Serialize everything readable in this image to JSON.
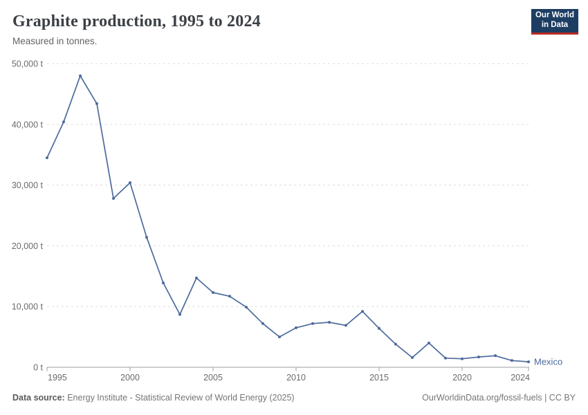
{
  "header": {
    "title": "Graphite production, 1995 to 2024",
    "subtitle": "Measured in tonnes."
  },
  "logo": {
    "line1": "Our World",
    "line2": "in Data",
    "bg_color": "#1d3d63",
    "bar_color": "#bc2a23"
  },
  "chart_data": {
    "type": "line",
    "title": "Graphite production, 1995 to 2024",
    "subtitle": "Measured in tonnes.",
    "unit": "tonnes",
    "grid": "horizontal-dashed",
    "legend_position": "end-of-line",
    "xlim": [
      1995,
      2024
    ],
    "ylim": [
      0,
      50000
    ],
    "x_ticks": [
      1995,
      2000,
      2005,
      2010,
      2015,
      2020,
      2024
    ],
    "x_tick_labels": [
      "1995",
      "2000",
      "2005",
      "2010",
      "2015",
      "2020",
      "2024"
    ],
    "y_ticks": [
      0,
      10000,
      20000,
      30000,
      40000,
      50000
    ],
    "y_tick_labels": [
      "0 t",
      "10,000 t",
      "20,000 t",
      "30,000 t",
      "40,000 t",
      "50,000 t"
    ],
    "x": [
      1995,
      1996,
      1997,
      1998,
      1999,
      2000,
      2001,
      2002,
      2003,
      2004,
      2005,
      2006,
      2007,
      2008,
      2009,
      2010,
      2011,
      2012,
      2013,
      2014,
      2015,
      2016,
      2017,
      2018,
      2019,
      2020,
      2021,
      2022,
      2023,
      2024
    ],
    "series": [
      {
        "name": "Mexico",
        "color": "#4C6A9C",
        "values": [
          34500,
          40400,
          48000,
          43400,
          27800,
          30400,
          21400,
          13900,
          8700,
          14700,
          12300,
          11700,
          9900,
          7200,
          5000,
          6500,
          7200,
          7400,
          6900,
          9200,
          6400,
          3800,
          1600,
          4000,
          1500,
          1400,
          1700,
          1900,
          1100,
          900
        ]
      }
    ],
    "colors": {
      "gridline": "#dcdcdc",
      "axis": "#9e9e9e",
      "tick_label": "#6b6b6b"
    }
  },
  "footer": {
    "source_label": "Data source:",
    "source_text": " Energy Institute - Statistical Review of World Energy (2025)",
    "right_text": "OurWorldinData.org/fossil-fuels | CC BY"
  }
}
